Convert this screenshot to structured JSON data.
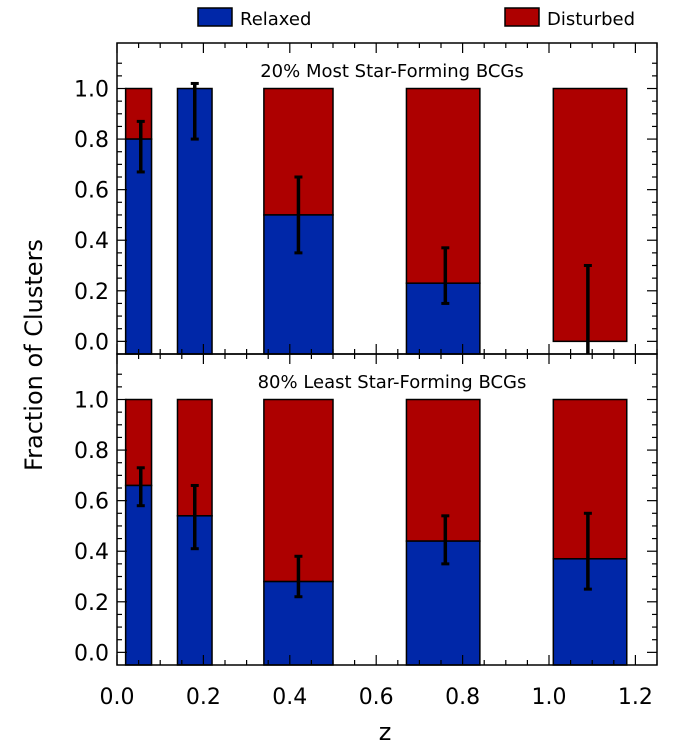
{
  "legend": [
    {
      "label": "Relaxed",
      "color": "#0027a8"
    },
    {
      "label": "Disturbed",
      "color": "#ad0000"
    }
  ],
  "chart_data": [
    {
      "type": "bar",
      "stacked": true,
      "title": "20% Most Star-Forming BCGs",
      "ylabel": "Fraction of Clusters",
      "xlabel": "",
      "xlim": [
        0.0,
        1.25
      ],
      "ylim": [
        -0.05,
        1.18
      ],
      "x_ticks": [
        "0.0",
        "0.2",
        "0.4",
        "0.6",
        "0.8",
        "1.0",
        "1.2"
      ],
      "y_ticks": [
        "0.0",
        "0.2",
        "0.4",
        "0.6",
        "0.8",
        "1.0"
      ],
      "bins": [
        {
          "x0": 0.02,
          "x1": 0.08,
          "relaxed": 0.8,
          "err_lo": 0.67,
          "err_hi": 0.87,
          "err_x": 0.055
        },
        {
          "x0": 0.14,
          "x1": 0.22,
          "relaxed": 1.0,
          "err_lo": 0.8,
          "err_hi": 1.02,
          "err_x": 0.18
        },
        {
          "x0": 0.34,
          "x1": 0.5,
          "relaxed": 0.5,
          "err_lo": 0.35,
          "err_hi": 0.65,
          "err_x": 0.42
        },
        {
          "x0": 0.67,
          "x1": 0.84,
          "relaxed": 0.23,
          "err_lo": 0.15,
          "err_hi": 0.37,
          "err_x": 0.76
        },
        {
          "x0": 1.01,
          "x1": 1.18,
          "relaxed": 0.0,
          "err_lo": -0.05,
          "err_hi": 0.3,
          "err_x": 1.09
        }
      ]
    },
    {
      "type": "bar",
      "stacked": true,
      "title": "80% Least Star-Forming BCGs",
      "ylabel": "Fraction of Clusters",
      "xlabel": "z",
      "xlim": [
        0.0,
        1.25
      ],
      "ylim": [
        -0.05,
        1.18
      ],
      "x_ticks": [
        "0.0",
        "0.2",
        "0.4",
        "0.6",
        "0.8",
        "1.0",
        "1.2"
      ],
      "y_ticks": [
        "0.0",
        "0.2",
        "0.4",
        "0.6",
        "0.8",
        "1.0"
      ],
      "bins": [
        {
          "x0": 0.02,
          "x1": 0.08,
          "relaxed": 0.66,
          "err_lo": 0.58,
          "err_hi": 0.73,
          "err_x": 0.055
        },
        {
          "x0": 0.14,
          "x1": 0.22,
          "relaxed": 0.54,
          "err_lo": 0.41,
          "err_hi": 0.66,
          "err_x": 0.18
        },
        {
          "x0": 0.34,
          "x1": 0.5,
          "relaxed": 0.28,
          "err_lo": 0.22,
          "err_hi": 0.38,
          "err_x": 0.42
        },
        {
          "x0": 0.67,
          "x1": 0.84,
          "relaxed": 0.44,
          "err_lo": 0.35,
          "err_hi": 0.54,
          "err_x": 0.76
        },
        {
          "x0": 1.01,
          "x1": 1.18,
          "relaxed": 0.37,
          "err_lo": 0.25,
          "err_hi": 0.55,
          "err_x": 1.09
        }
      ]
    }
  ]
}
